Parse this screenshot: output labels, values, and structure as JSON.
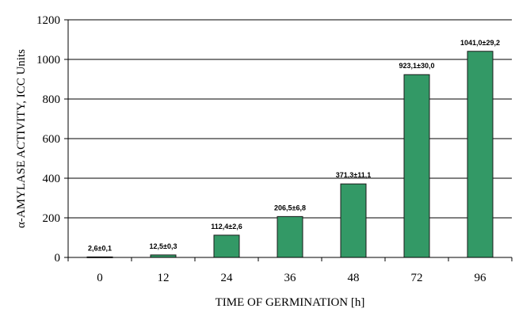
{
  "chart_data": {
    "type": "bar",
    "categories": [
      "0",
      "12",
      "24",
      "36",
      "48",
      "72",
      "96"
    ],
    "values": [
      2.6,
      12.5,
      112.4,
      206.5,
      371.3,
      923.1,
      1041.0
    ],
    "data_labels": [
      "2,6±0,1",
      "12,5±0,3",
      "112,4±2,6",
      "206,5±6,8",
      "371,3±11,1",
      "923,1±30,0",
      "1041,0±29,2"
    ],
    "title": "",
    "xlabel": "TIME OF GERMINATION [h]",
    "ylabel": "α-AMYLASE ACTIVITY, ICC Units",
    "ylim": [
      0,
      1200
    ],
    "yticks": [
      "0",
      "200",
      "400",
      "600",
      "800",
      "1000",
      "1200"
    ],
    "grid": true,
    "legend": "none",
    "bar_color": "#339966",
    "bar_edge_color": "#1a1a1a"
  }
}
